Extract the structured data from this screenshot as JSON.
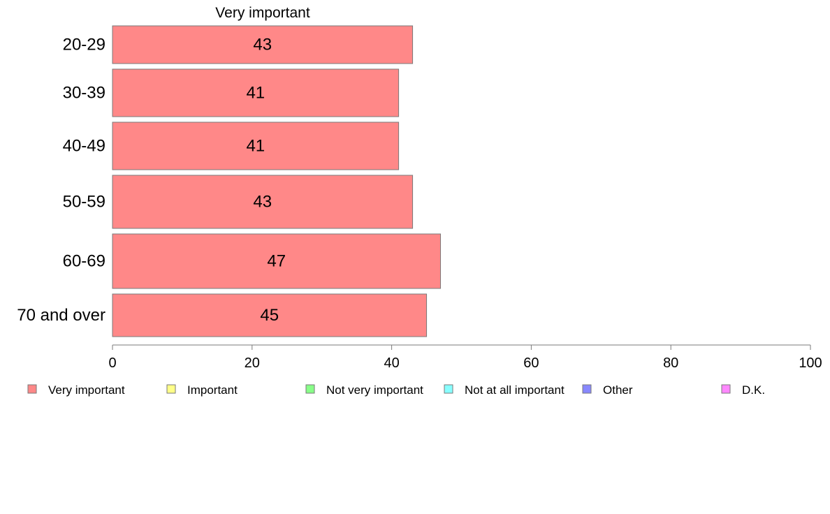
{
  "chart_data": {
    "type": "bar",
    "orientation": "horizontal",
    "title": "Very important",
    "categories": [
      "20-29",
      "30-39",
      "40-49",
      "50-59",
      "60-69",
      "70 and over"
    ],
    "series": [
      {
        "name": "Very important",
        "values": [
          43,
          41,
          41,
          43,
          47,
          45
        ],
        "color": "#ff8888"
      }
    ],
    "xlim": [
      0,
      100
    ],
    "xticks": [
      0,
      20,
      40,
      60,
      80,
      100
    ],
    "grid": false,
    "legend_position": "bottom",
    "legend": [
      {
        "label": "Very important",
        "color": "#ff8888"
      },
      {
        "label": "Important",
        "color": "#ffff88"
      },
      {
        "label": "Not very important",
        "color": "#88ff88"
      },
      {
        "label": "Not at all important",
        "color": "#88ffff"
      },
      {
        "label": "Other",
        "color": "#8888ff"
      },
      {
        "label": "D.K.",
        "color": "#ff88ff"
      }
    ]
  }
}
